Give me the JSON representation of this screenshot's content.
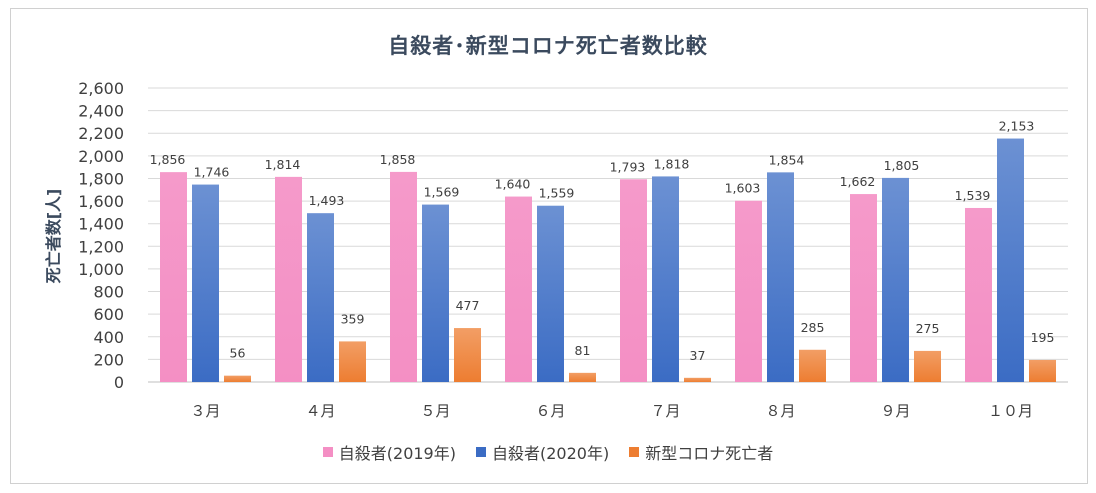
{
  "chart_data": {
    "type": "bar",
    "title": "自殺者･新型コロナ死亡者数比較",
    "ylabel": "死亡者数[人]",
    "xlabel": "",
    "ylim": [
      0,
      2600
    ],
    "yticks": [
      "0",
      "200",
      "400",
      "600",
      "800",
      "1,000",
      "1,200",
      "1,400",
      "1,600",
      "1,800",
      "2,000",
      "2,200",
      "2,400",
      "2,600"
    ],
    "categories": [
      "３月",
      "４月",
      "５月",
      "６月",
      "７月",
      "８月",
      "９月",
      "１０月"
    ],
    "series": [
      {
        "name": "自殺者(2019年)",
        "color": "#f48fc4",
        "values": [
          1856,
          1814,
          1858,
          1640,
          1793,
          1603,
          1662,
          1539
        ],
        "labels": [
          "1,856",
          "1,814",
          "1,858",
          "1,640",
          "1,793",
          "1,603",
          "1,662",
          "1,539"
        ]
      },
      {
        "name": "自殺者(2020年)",
        "color": "#3b6cc4",
        "values": [
          1746,
          1493,
          1569,
          1559,
          1818,
          1854,
          1805,
          2153
        ],
        "labels": [
          "1,746",
          "1,493",
          "1,569",
          "1,559",
          "1,818",
          "1,854",
          "1,805",
          "2,153"
        ]
      },
      {
        "name": "新型コロナ死亡者",
        "color": "#ed7d31",
        "values": [
          56,
          359,
          477,
          81,
          37,
          285,
          275,
          195
        ],
        "labels": [
          "56",
          "359",
          "477",
          "81",
          "37",
          "285",
          "275",
          "195"
        ]
      }
    ],
    "grid": true,
    "legend_position": "bottom"
  }
}
